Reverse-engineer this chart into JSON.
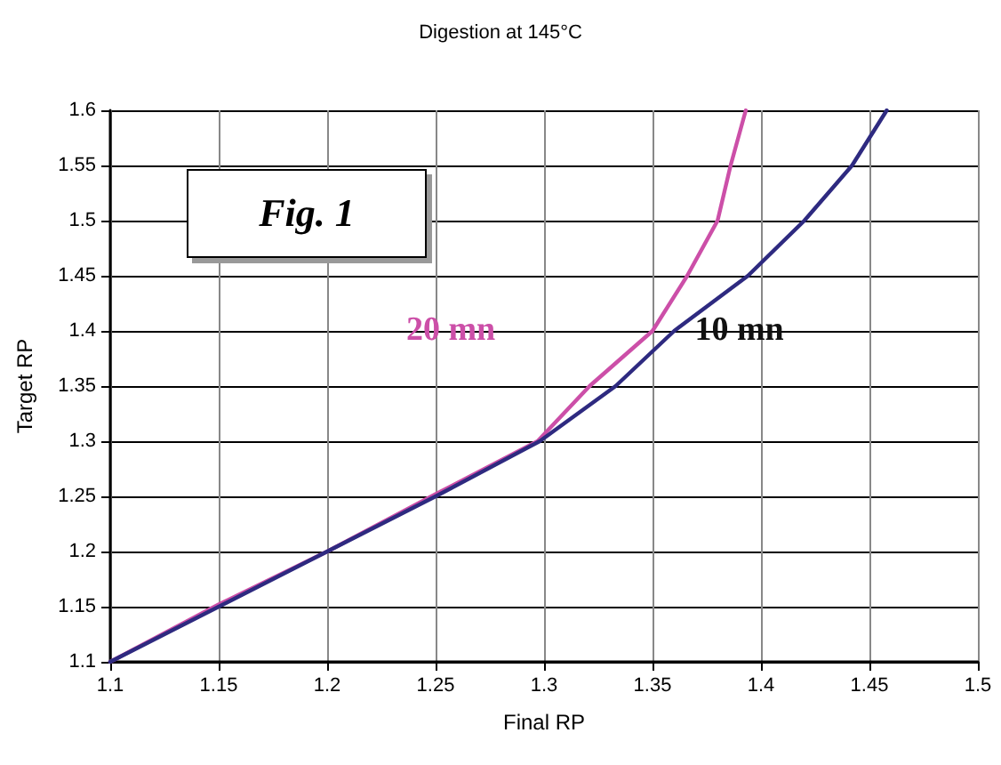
{
  "chart_data": {
    "type": "line",
    "title": "Digestion at 145°C",
    "xlabel": "Final RP",
    "ylabel": "Target RP",
    "series": [
      {
        "name": "20 mn",
        "color": "#cc4fa8",
        "x": [
          1.1,
          1.15,
          1.2,
          1.25,
          1.297,
          1.321,
          1.35,
          1.366,
          1.38,
          1.386,
          1.393
        ],
        "values": [
          1.1,
          1.152,
          1.2,
          1.252,
          1.3,
          1.35,
          1.4,
          1.45,
          1.5,
          1.55,
          1.6
        ]
      },
      {
        "name": "10 mn",
        "color": "#2e2a80",
        "x": [
          1.1,
          1.15,
          1.2,
          1.25,
          1.298,
          1.333,
          1.36,
          1.394,
          1.42,
          1.442,
          1.458
        ],
        "values": [
          1.1,
          1.15,
          1.2,
          1.25,
          1.3,
          1.35,
          1.4,
          1.45,
          1.5,
          1.55,
          1.6
        ]
      }
    ],
    "annotations": [
      "Fig. 1"
    ],
    "xlim": [
      1.1,
      1.5
    ],
    "xticks": [
      1.1,
      1.15,
      1.2,
      1.25,
      1.3,
      1.35,
      1.4,
      1.45,
      1.5
    ],
    "ylim": [
      1.1,
      1.6
    ],
    "yticks": [
      1.1,
      1.15,
      1.2,
      1.25,
      1.3,
      1.35,
      1.4,
      1.45,
      1.5,
      1.55,
      1.6
    ],
    "grid": true,
    "legend": false,
    "marker": "none",
    "line_style": "solid"
  }
}
